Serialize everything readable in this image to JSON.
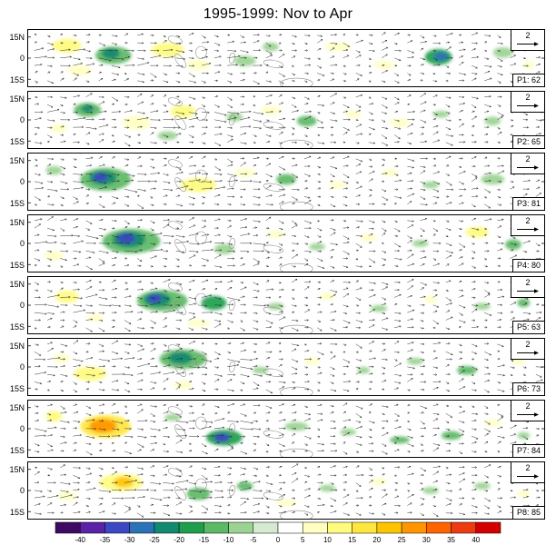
{
  "chart_data": {
    "type": "heatmap",
    "overlay": "wind-vector-anomaly-field",
    "title": "1995-1999: Nov to Apr",
    "subtitle": "",
    "y_ticks": [
      "15N",
      "0",
      "15S"
    ],
    "x_ticks": [],
    "reference_vector_label": "2",
    "grid": false,
    "arrow_grid": {
      "nx": 40,
      "ny": 7
    },
    "panels": [
      {
        "id": "P1",
        "label": "P1: 62",
        "score": 62,
        "blobs": [
          [
            0.075,
            0.28,
            16,
            8,
            13
          ],
          [
            0.1,
            0.72,
            13,
            6,
            9
          ],
          [
            0.165,
            0.45,
            20,
            10,
            -13
          ],
          [
            0.16,
            0.42,
            10,
            6,
            -22
          ],
          [
            0.27,
            0.35,
            18,
            8,
            12
          ],
          [
            0.33,
            0.62,
            13,
            6,
            9
          ],
          [
            0.42,
            0.55,
            12,
            6,
            -9
          ],
          [
            0.47,
            0.3,
            9,
            5,
            -9
          ],
          [
            0.6,
            0.3,
            14,
            5,
            7
          ],
          [
            0.69,
            0.62,
            11,
            5,
            7
          ],
          [
            0.795,
            0.48,
            15,
            9,
            -19
          ],
          [
            0.8,
            0.47,
            8,
            5,
            -27
          ],
          [
            0.92,
            0.4,
            11,
            6,
            -8
          ],
          [
            0.97,
            0.62,
            7,
            4,
            7
          ]
        ]
      },
      {
        "id": "P2",
        "label": "P2: 65",
        "score": 65,
        "blobs": [
          [
            0.115,
            0.32,
            15,
            8,
            -13
          ],
          [
            0.115,
            0.3,
            7,
            4,
            -22
          ],
          [
            0.06,
            0.65,
            9,
            5,
            7
          ],
          [
            0.21,
            0.55,
            16,
            8,
            9
          ],
          [
            0.3,
            0.35,
            14,
            7,
            12
          ],
          [
            0.27,
            0.78,
            11,
            5,
            -9
          ],
          [
            0.4,
            0.45,
            9,
            5,
            -8
          ],
          [
            0.47,
            0.33,
            11,
            5,
            9
          ],
          [
            0.54,
            0.52,
            11,
            6,
            -11
          ],
          [
            0.63,
            0.4,
            9,
            4,
            7
          ],
          [
            0.72,
            0.55,
            11,
            5,
            7
          ],
          [
            0.8,
            0.4,
            9,
            4,
            -8
          ],
          [
            0.9,
            0.52,
            9,
            5,
            -8
          ]
        ]
      },
      {
        "id": "P3",
        "label": "P3: 81",
        "score": 81,
        "blobs": [
          [
            0.15,
            0.46,
            28,
            13,
            -13
          ],
          [
            0.145,
            0.43,
            15,
            8,
            -22
          ],
          [
            0.14,
            0.42,
            8,
            5,
            -32
          ],
          [
            0.05,
            0.3,
            9,
            5,
            -9
          ],
          [
            0.33,
            0.56,
            20,
            8,
            12
          ],
          [
            0.42,
            0.34,
            11,
            5,
            9
          ],
          [
            0.5,
            0.46,
            11,
            6,
            -11
          ],
          [
            0.6,
            0.56,
            9,
            4,
            7
          ],
          [
            0.7,
            0.34,
            9,
            4,
            7
          ],
          [
            0.78,
            0.56,
            9,
            4,
            -8
          ],
          [
            0.9,
            0.46,
            13,
            6,
            -9
          ],
          [
            0.97,
            0.3,
            7,
            4,
            7
          ]
        ]
      },
      {
        "id": "P4",
        "label": "P4: 80",
        "score": 80,
        "blobs": [
          [
            0.2,
            0.46,
            32,
            14,
            -13
          ],
          [
            0.195,
            0.43,
            18,
            9,
            -22
          ],
          [
            0.19,
            0.41,
            10,
            6,
            -32
          ],
          [
            0.05,
            0.72,
            11,
            5,
            9
          ],
          [
            0.38,
            0.6,
            11,
            6,
            -9
          ],
          [
            0.48,
            0.34,
            9,
            4,
            7
          ],
          [
            0.56,
            0.56,
            9,
            4,
            -8
          ],
          [
            0.66,
            0.4,
            9,
            4,
            7
          ],
          [
            0.76,
            0.5,
            9,
            4,
            -8
          ],
          [
            0.87,
            0.3,
            13,
            6,
            12
          ],
          [
            0.94,
            0.52,
            9,
            6,
            -13
          ]
        ]
      },
      {
        "id": "P5",
        "label": "P5: 63",
        "score": 63,
        "blobs": [
          [
            0.26,
            0.42,
            28,
            12,
            -13
          ],
          [
            0.25,
            0.4,
            15,
            8,
            -22
          ],
          [
            0.245,
            0.38,
            8,
            5,
            -32
          ],
          [
            0.36,
            0.46,
            14,
            8,
            -19
          ],
          [
            0.075,
            0.35,
            13,
            7,
            12
          ],
          [
            0.13,
            0.72,
            9,
            4,
            7
          ],
          [
            0.33,
            0.82,
            13,
            4,
            9
          ],
          [
            0.48,
            0.52,
            9,
            4,
            -8
          ],
          [
            0.58,
            0.34,
            9,
            4,
            7
          ],
          [
            0.68,
            0.56,
            9,
            4,
            -8
          ],
          [
            0.78,
            0.4,
            7,
            4,
            7
          ],
          [
            0.88,
            0.52,
            9,
            4,
            -9
          ],
          [
            0.96,
            0.46,
            7,
            5,
            -13
          ]
        ]
      },
      {
        "id": "P6",
        "label": "P6: 73",
        "score": 73,
        "blobs": [
          [
            0.3,
            0.36,
            26,
            11,
            -13
          ],
          [
            0.295,
            0.34,
            13,
            7,
            -22
          ],
          [
            0.12,
            0.62,
            18,
            8,
            12
          ],
          [
            0.065,
            0.35,
            9,
            5,
            7
          ],
          [
            0.3,
            0.82,
            11,
            4,
            9
          ],
          [
            0.45,
            0.56,
            9,
            4,
            -8
          ],
          [
            0.55,
            0.4,
            9,
            4,
            7
          ],
          [
            0.65,
            0.56,
            7,
            4,
            -8
          ],
          [
            0.75,
            0.4,
            9,
            4,
            -9
          ],
          [
            0.85,
            0.56,
            11,
            5,
            -11
          ],
          [
            0.95,
            0.4,
            7,
            4,
            7
          ]
        ]
      },
      {
        "id": "P7",
        "label": "P7: 84",
        "score": 84,
        "blobs": [
          [
            0.15,
            0.46,
            28,
            13,
            17
          ],
          [
            0.145,
            0.45,
            15,
            8,
            28
          ],
          [
            0.05,
            0.28,
            9,
            6,
            12
          ],
          [
            0.38,
            0.66,
            20,
            9,
            -19
          ],
          [
            0.375,
            0.66,
            9,
            5,
            -32
          ],
          [
            0.28,
            0.3,
            9,
            4,
            -9
          ],
          [
            0.52,
            0.46,
            13,
            5,
            -9
          ],
          [
            0.62,
            0.56,
            9,
            4,
            -8
          ],
          [
            0.72,
            0.7,
            11,
            4,
            -11
          ],
          [
            0.82,
            0.62,
            11,
            5,
            -13
          ],
          [
            0.9,
            0.4,
            9,
            4,
            7
          ],
          [
            0.96,
            0.62,
            7,
            4,
            -8
          ]
        ]
      },
      {
        "id": "P8",
        "label": "P8: 85",
        "score": 85,
        "blobs": [
          [
            0.18,
            0.36,
            24,
            10,
            13
          ],
          [
            0.185,
            0.35,
            11,
            6,
            22
          ],
          [
            0.075,
            0.6,
            11,
            5,
            9
          ],
          [
            0.33,
            0.56,
            13,
            7,
            -13
          ],
          [
            0.42,
            0.42,
            9,
            5,
            -11
          ],
          [
            0.5,
            0.72,
            11,
            4,
            9
          ],
          [
            0.58,
            0.46,
            9,
            4,
            -9
          ],
          [
            0.68,
            0.34,
            9,
            4,
            7
          ],
          [
            0.78,
            0.5,
            9,
            4,
            -8
          ],
          [
            0.88,
            0.42,
            9,
            4,
            -9
          ],
          [
            0.96,
            0.56,
            7,
            4,
            9
          ]
        ]
      }
    ],
    "coastlines": [
      [
        0.295,
        0.55,
        4,
        9,
        -35
      ],
      [
        0.335,
        0.4,
        6,
        7,
        0
      ],
      [
        0.395,
        0.5,
        3,
        6,
        10
      ],
      [
        0.475,
        0.6,
        11,
        4,
        10
      ],
      [
        0.285,
        0.18,
        8,
        4,
        20
      ],
      [
        0.52,
        0.95,
        18,
        6,
        0
      ]
    ],
    "colorbar": {
      "boundaries": [
        -40,
        -35,
        -30,
        -25,
        -20,
        -15,
        -10,
        -5,
        0,
        5,
        10,
        15,
        20,
        25,
        30,
        35,
        40
      ],
      "tick_labels": [
        "-40",
        "-35",
        "-30",
        "-25",
        "-20",
        "-15",
        "-10",
        "-5",
        "0",
        "5",
        "10",
        "15",
        "20",
        "25",
        "30",
        "35",
        "40"
      ],
      "colors": [
        "#3f0a63",
        "#5b21a6",
        "#3c47c2",
        "#2a73b8",
        "#128a70",
        "#1f9e4c",
        "#5cb964",
        "#9bd392",
        "#d4ebcf",
        "#ffffff",
        "#ffffc2",
        "#fffb7d",
        "#ffe63e",
        "#ffc400",
        "#ff9500",
        "#ff6400",
        "#ef3b12",
        "#d40000"
      ]
    }
  }
}
